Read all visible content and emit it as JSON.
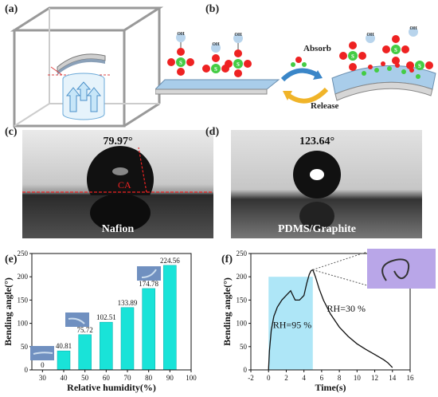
{
  "panels": {
    "a": {
      "label": "(a)",
      "angle_symbol": "θ"
    },
    "b": {
      "label": "(b)",
      "absorb": "Absorb",
      "release": "Release",
      "group_oh": "OH",
      "group_s": "S",
      "group_o": "O",
      "group_h": "H"
    },
    "c": {
      "label": "(c)",
      "angle": "79.97°",
      "ca": "CA",
      "material": "Nafion"
    },
    "d": {
      "label": "(d)",
      "angle": "123.64°",
      "material": "PDMS/Graphite"
    },
    "e": {
      "label": "(e)"
    },
    "f": {
      "label": "(f)",
      "rh_high": "RH=95 %",
      "rh_low": "RH=30 %"
    }
  },
  "chart_data": [
    {
      "type": "bar",
      "panel": "e",
      "categories": [
        30,
        40,
        50,
        60,
        70,
        80,
        90
      ],
      "values": [
        0,
        40.81,
        75.72,
        102.51,
        133.89,
        174.78,
        224.56
      ],
      "data_labels": [
        "0",
        "40.81",
        "75.72",
        "102.51",
        "133.89",
        "174.78",
        "224.56"
      ],
      "xlabel": "Relative humidity(%)",
      "ylabel": "Bending angle(°)",
      "xlim": [
        25,
        100
      ],
      "ylim": [
        0,
        250
      ],
      "xticks": [
        30,
        40,
        50,
        60,
        70,
        80,
        90,
        100
      ],
      "yticks": [
        0,
        50,
        100,
        150,
        200,
        250
      ],
      "bar_color": "#19e3d8"
    },
    {
      "type": "line",
      "panel": "f",
      "x": [
        0,
        0.1,
        0.3,
        0.6,
        1.0,
        1.5,
        2.0,
        2.5,
        3.0,
        3.5,
        4.0,
        4.3,
        4.6,
        4.8,
        5.0,
        5.3,
        5.7,
        6.2,
        7.0,
        8.0,
        9.0,
        10.0,
        11.0,
        12.0,
        13.0,
        13.5,
        14.0
      ],
      "y": [
        0,
        40,
        85,
        115,
        135,
        150,
        160,
        170,
        150,
        150,
        160,
        185,
        205,
        213,
        215,
        200,
        175,
        150,
        120,
        92,
        72,
        56,
        44,
        33,
        22,
        15,
        5
      ],
      "xlabel": "Time(s)",
      "ylabel": "Bending angle(°)",
      "xlim": [
        -2,
        16
      ],
      "ylim": [
        0,
        250
      ],
      "xticks": [
        -2,
        0,
        2,
        4,
        6,
        8,
        10,
        12,
        14,
        16
      ],
      "yticks": [
        0,
        50,
        100,
        150,
        200,
        250
      ],
      "highlight_region": [
        0,
        5
      ],
      "highlight_color": "#aee6f7",
      "line_color": "#111111"
    }
  ]
}
